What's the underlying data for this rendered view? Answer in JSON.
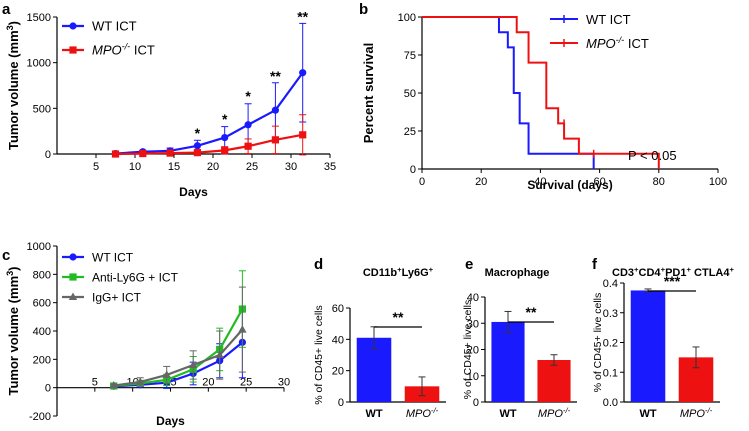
{
  "chart_data": [
    {
      "id": "a",
      "panel_label": "a",
      "type": "line",
      "xlabel": "Days",
      "ylabel": "Tumor volume (mm",
      "ylabel_sup": "3",
      "ylabel_close": ")",
      "xlim": [
        0,
        35
      ],
      "ylim": [
        0,
        1500
      ],
      "xticks": [
        5,
        10,
        15,
        20,
        25,
        30,
        35
      ],
      "yticks": [
        0,
        500,
        1000,
        1500
      ],
      "x": [
        7.5,
        11,
        14.5,
        18,
        21.5,
        24.5,
        28,
        31.5
      ],
      "series": [
        {
          "name": "WT ICT",
          "color": "#1a1aff",
          "marker": "circle",
          "values": [
            5,
            25,
            35,
            90,
            180,
            320,
            480,
            890
          ],
          "err": [
            5,
            15,
            30,
            60,
            120,
            230,
            300,
            540
          ]
        },
        {
          "name": "MPO",
          "name_sup": "-/-",
          "name_suffix": " ICT",
          "color": "#ee1111",
          "marker": "square",
          "values": [
            0,
            5,
            10,
            15,
            40,
            85,
            155,
            210
          ],
          "err": [
            0,
            5,
            10,
            15,
            40,
            80,
            150,
            220
          ]
        }
      ],
      "annotations": [
        {
          "x": 18,
          "y": 175,
          "text": "*"
        },
        {
          "x": 21.5,
          "y": 330,
          "text": "*"
        },
        {
          "x": 24.5,
          "y": 580,
          "text": "*"
        },
        {
          "x": 28,
          "y": 800,
          "text": "**"
        },
        {
          "x": 31.5,
          "y": 1450,
          "text": "**"
        }
      ]
    },
    {
      "id": "b",
      "panel_label": "b",
      "type": "line",
      "subtype": "survival-step",
      "xlabel": "Survival (days)",
      "ylabel": "Percent survival",
      "xlim": [
        0,
        100
      ],
      "ylim": [
        0,
        100
      ],
      "xticks": [
        0,
        20,
        40,
        60,
        80,
        100
      ],
      "yticks": [
        0,
        25,
        50,
        75,
        100
      ],
      "series": [
        {
          "name": "WT ICT",
          "color": "#1a1aff",
          "x": [
            0,
            26,
            26,
            29,
            29,
            31,
            31,
            33,
            33,
            36,
            36,
            40,
            40,
            58,
            58
          ],
          "y": [
            100,
            100,
            90,
            90,
            80,
            80,
            50,
            50,
            30,
            30,
            10,
            10,
            10,
            10,
            0
          ]
        },
        {
          "name": "MPO",
          "name_sup": "-/-",
          "name_suffix": " ICT",
          "color": "#ee1111",
          "x": [
            0,
            32,
            32,
            36,
            36,
            42,
            42,
            46,
            46,
            48,
            48,
            53,
            53,
            80,
            80
          ],
          "y": [
            100,
            100,
            90,
            90,
            70,
            70,
            40,
            40,
            30,
            30,
            20,
            20,
            10,
            10,
            0
          ]
        }
      ],
      "censor": [
        {
          "series": 1,
          "x": 48,
          "y": 30
        },
        {
          "series": 1,
          "x": 58,
          "y": 10
        }
      ],
      "pvalue": "P < 0.05"
    },
    {
      "id": "c",
      "panel_label": "c",
      "type": "line",
      "xlabel": "Days",
      "ylabel": "Tumor volume (mm",
      "ylabel_sup": "3",
      "ylabel_close": ")",
      "xlim": [
        0,
        30
      ],
      "ylim": [
        -200,
        1000
      ],
      "xticks": [
        5,
        10,
        15,
        20,
        25,
        30
      ],
      "yticks": [
        -200,
        0,
        200,
        400,
        600,
        800,
        1000
      ],
      "x": [
        7.5,
        11,
        14.5,
        18,
        21.5,
        24.5
      ],
      "series": [
        {
          "name": "WT ICT",
          "color": "#1a1aff",
          "marker": "circle",
          "values": [
            10,
            20,
            35,
            100,
            190,
            320
          ],
          "err": [
            10,
            15,
            40,
            80,
            120,
            250
          ]
        },
        {
          "name": "Anti-Ly6G + ICT",
          "color": "#22bb22",
          "marker": "square",
          "values": [
            12,
            30,
            55,
            130,
            270,
            555
          ],
          "err": [
            10,
            20,
            40,
            90,
            150,
            270
          ]
        },
        {
          "name": "IgG+ ICT",
          "color": "#666666",
          "marker": "triangle",
          "values": [
            15,
            40,
            90,
            160,
            230,
            410
          ],
          "err": [
            10,
            30,
            60,
            100,
            170,
            300
          ]
        }
      ]
    },
    {
      "id": "d",
      "panel_label": "d",
      "type": "bar",
      "title": "CD11b",
      "title_sup1": "+",
      "title_mid": "Ly6G",
      "title_sup2": "+",
      "ylabel": "% of CD45+ live cells",
      "ylim": [
        0,
        60
      ],
      "yticks": [
        0,
        20,
        40,
        60
      ],
      "categories": [
        "WT",
        "MPO"
      ],
      "category_sup": [
        "",
        "-/-"
      ],
      "values": [
        41,
        10
      ],
      "err": [
        7,
        6
      ],
      "colors": [
        "#1a1aff",
        "#ee1111"
      ],
      "sig": "**"
    },
    {
      "id": "e",
      "panel_label": "e",
      "type": "bar",
      "title": "Macrophage",
      "ylabel": "% of CD45+ live cells",
      "ylim": [
        0,
        40
      ],
      "yticks": [
        0,
        10,
        20,
        30,
        40
      ],
      "categories": [
        "WT",
        "MPO"
      ],
      "category_sup": [
        "",
        "-/-"
      ],
      "values": [
        30.5,
        16
      ],
      "err": [
        4,
        2
      ],
      "colors": [
        "#1a1aff",
        "#ee1111"
      ],
      "sig": "**"
    },
    {
      "id": "f",
      "panel_label": "f",
      "type": "bar",
      "title": "CD3",
      "title_sup1": "+",
      "title_mid": "CD4",
      "title_sup2": "+",
      "title_mid2": "PD1",
      "title_sup3": "+",
      "title_mid3": " CTLA4",
      "title_sup4": "+",
      "ylabel": "% of CD45+ live cells",
      "ylim": [
        0,
        0.4
      ],
      "yticks": [
        "0.0",
        "0.1",
        "0.2",
        "0.3",
        "0.4"
      ],
      "categories": [
        "WT",
        "MPO"
      ],
      "category_sup": [
        "",
        "-/-"
      ],
      "values": [
        0.375,
        0.15
      ],
      "err": [
        0.005,
        0.035
      ],
      "colors": [
        "#1a1aff",
        "#ee1111"
      ],
      "sig": "***"
    }
  ]
}
